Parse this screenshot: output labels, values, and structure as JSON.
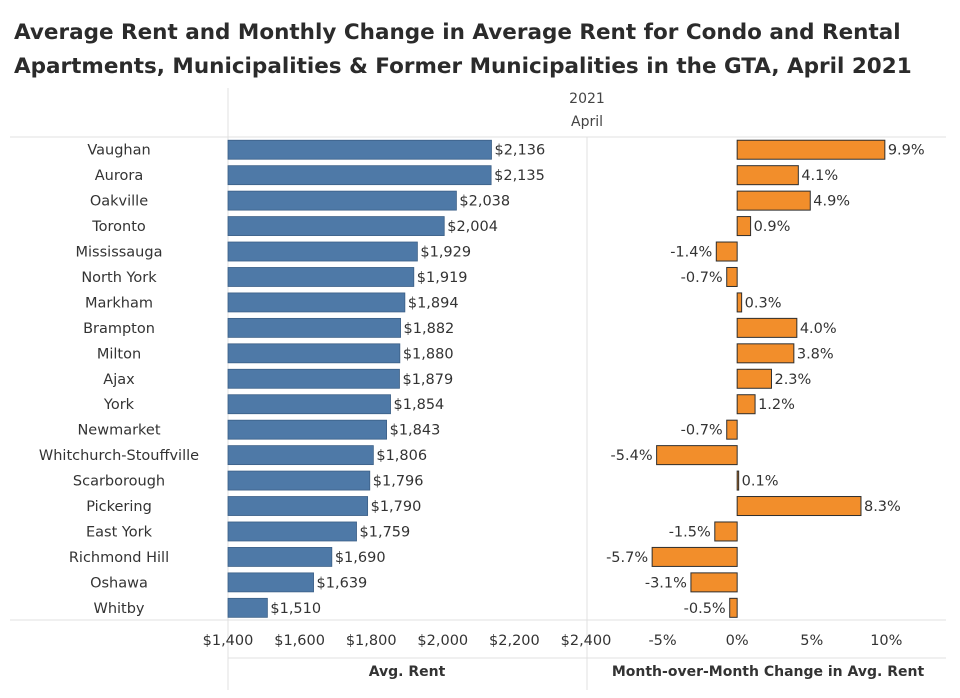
{
  "title_line1": "Average Rent and Monthly Change in Average Rent for Condo and Rental",
  "title_line2": "Apartments, Municipalities & Former Municipalities in the GTA, April 2021",
  "header": {
    "year": "2021",
    "month": "April"
  },
  "colors": {
    "rent_bar": "#4e79a7",
    "change_bar": "#f28e2b",
    "grid": "#e0e0e0",
    "text": "#333333"
  },
  "chart_data": [
    {
      "type": "bar",
      "orientation": "horizontal",
      "xlabel": "Avg. Rent",
      "xlim": [
        1400,
        2400
      ],
      "ticks": [
        1400,
        1600,
        1800,
        2000,
        2200,
        2400
      ],
      "tick_labels": [
        "$1,400",
        "$1,600",
        "$1,800",
        "$2,000",
        "$2,200",
        "$2,400"
      ],
      "categories": [
        "Vaughan",
        "Aurora",
        "Oakville",
        "Toronto",
        "Mississauga",
        "North York",
        "Markham",
        "Brampton",
        "Milton",
        "Ajax",
        "York",
        "Newmarket",
        "Whitchurch-Stouffville",
        "Scarborough",
        "Pickering",
        "East York",
        "Richmond Hill",
        "Oshawa",
        "Whitby"
      ],
      "values": [
        2136,
        2135,
        2038,
        2004,
        1929,
        1919,
        1894,
        1882,
        1880,
        1879,
        1854,
        1843,
        1806,
        1796,
        1790,
        1759,
        1690,
        1639,
        1510
      ],
      "labels": [
        "$2,136",
        "$2,135",
        "$2,038",
        "$2,004",
        "$1,929",
        "$1,919",
        "$1,894",
        "$1,882",
        "$1,880",
        "$1,879",
        "$1,854",
        "$1,843",
        "$1,806",
        "$1,796",
        "$1,790",
        "$1,759",
        "$1,690",
        "$1,639",
        "$1,510"
      ]
    },
    {
      "type": "bar",
      "orientation": "horizontal",
      "xlabel": "Month-over-Month Change in Avg. Rent",
      "xlim": [
        -10,
        14
      ],
      "ticks": [
        -5,
        0,
        5,
        10
      ],
      "tick_labels": [
        "-5%",
        "0%",
        "5%",
        "10%"
      ],
      "categories": [
        "Vaughan",
        "Aurora",
        "Oakville",
        "Toronto",
        "Mississauga",
        "North York",
        "Markham",
        "Brampton",
        "Milton",
        "Ajax",
        "York",
        "Newmarket",
        "Whitchurch-Stouffville",
        "Scarborough",
        "Pickering",
        "East York",
        "Richmond Hill",
        "Oshawa",
        "Whitby"
      ],
      "values": [
        9.9,
        4.1,
        4.9,
        0.9,
        -1.4,
        -0.7,
        0.3,
        4.0,
        3.8,
        2.3,
        1.2,
        -0.7,
        -5.4,
        0.1,
        8.3,
        -1.5,
        -5.7,
        -3.1,
        -0.5
      ],
      "labels": [
        "9.9%",
        "4.1%",
        "4.9%",
        "0.9%",
        "-1.4%",
        "-0.7%",
        "0.3%",
        "4.0%",
        "3.8%",
        "2.3%",
        "1.2%",
        "-0.7%",
        "-5.4%",
        "0.1%",
        "8.3%",
        "-1.5%",
        "-5.7%",
        "-3.1%",
        "-0.5%"
      ]
    }
  ]
}
